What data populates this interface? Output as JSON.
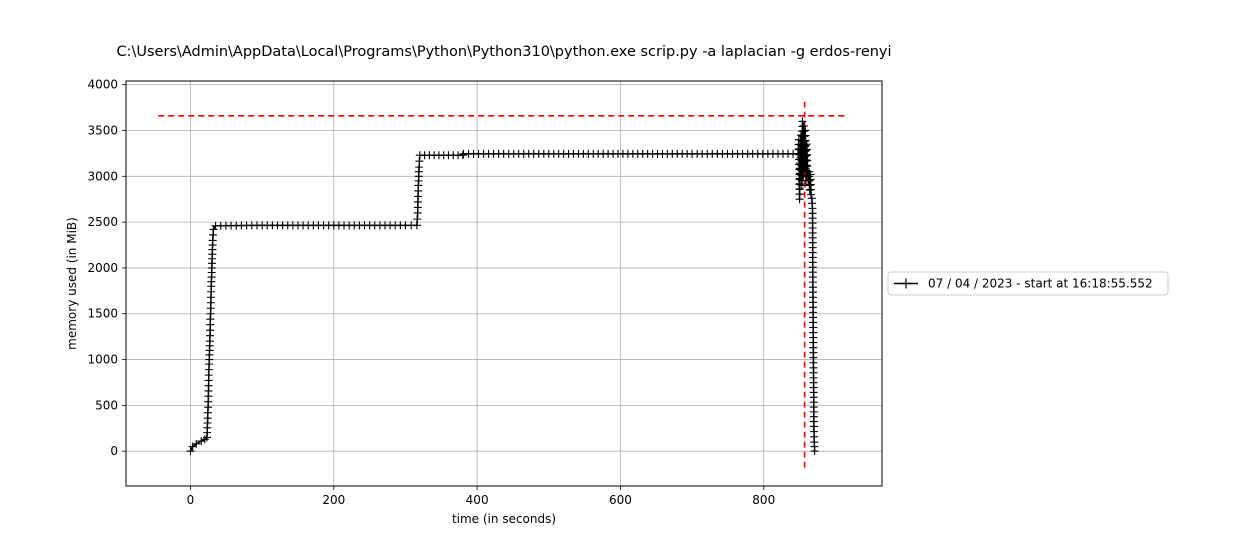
{
  "chart_data": {
    "type": "line",
    "title": "C:\\Users\\Admin\\AppData\\Local\\Programs\\Python\\Python310\\python.exe scrip.py -a laplacian -g erdos-renyi",
    "xlabel": "time (in seconds)",
    "ylabel": "memory used (in MiB)",
    "xlim": [
      -90,
      965
    ],
    "ylim": [
      -380,
      4040
    ],
    "x_ticks": [
      0,
      200,
      400,
      600,
      800
    ],
    "y_ticks": [
      0,
      500,
      1000,
      1500,
      2000,
      2500,
      3000,
      3500,
      4000
    ],
    "grid": true,
    "legend": {
      "placement": "outside-right",
      "entries": [
        "07 / 04 / 2023 - start at 16:18:55.552"
      ]
    },
    "series": [
      {
        "name": "07 / 04 / 2023 - start at 16:18:55.552",
        "color": "#000000",
        "marker": "+",
        "key_points": [
          [
            0,
            0
          ],
          [
            3,
            50
          ],
          [
            8,
            80
          ],
          [
            15,
            110
          ],
          [
            20,
            130
          ],
          [
            23,
            150
          ],
          [
            24,
            360
          ],
          [
            25,
            600
          ],
          [
            25.5,
            830
          ],
          [
            26,
            950
          ],
          [
            27,
            1200
          ],
          [
            28,
            1500
          ],
          [
            29,
            1800
          ],
          [
            30,
            2050
          ],
          [
            31,
            2300
          ],
          [
            32,
            2420
          ],
          [
            35,
            2460
          ],
          [
            100,
            2465
          ],
          [
            200,
            2465
          ],
          [
            300,
            2465
          ],
          [
            316,
            2465
          ],
          [
            317,
            2600
          ],
          [
            318,
            2900
          ],
          [
            319,
            3100
          ],
          [
            320,
            3230
          ],
          [
            380,
            3230
          ],
          [
            381,
            3245
          ],
          [
            500,
            3245
          ],
          [
            700,
            3245
          ],
          [
            848,
            3245
          ],
          [
            849,
            3400
          ],
          [
            850,
            2750
          ],
          [
            851,
            3200
          ],
          [
            852,
            3450
          ],
          [
            853,
            2900
          ],
          [
            854,
            3600
          ],
          [
            855,
            3000
          ],
          [
            856,
            3550
          ],
          [
            857,
            3100
          ],
          [
            858,
            3500
          ],
          [
            859,
            2950
          ],
          [
            860,
            3350
          ],
          [
            861,
            3050
          ],
          [
            862,
            2950
          ],
          [
            863,
            3050
          ],
          [
            864,
            2850
          ],
          [
            865,
            3020
          ],
          [
            866,
            2800
          ],
          [
            867,
            2760
          ],
          [
            868,
            2650
          ],
          [
            868.5,
            1900
          ],
          [
            869,
            1350
          ],
          [
            869.5,
            800
          ],
          [
            870,
            270
          ],
          [
            870.5,
            100
          ],
          [
            871,
            0
          ]
        ]
      }
    ],
    "reference_lines": [
      {
        "orientation": "horizontal",
        "value": 3660,
        "x_range": [
          -45,
          915
        ],
        "color": "#ff0000",
        "style": "dashed"
      },
      {
        "orientation": "vertical",
        "value": 857,
        "y_range": [
          -180,
          3840
        ],
        "color": "#ff0000",
        "style": "dashed"
      }
    ]
  }
}
